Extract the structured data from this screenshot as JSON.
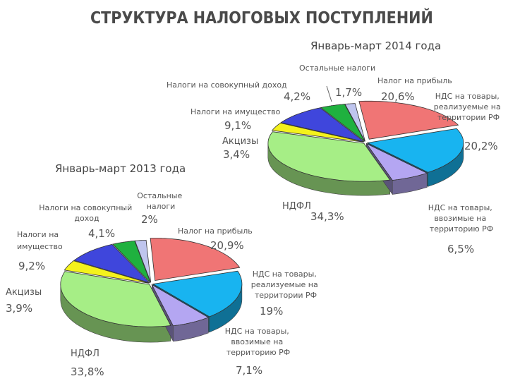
{
  "title": "СТРУКТУРА НАЛОГОВЫХ ПОСТУПЛЕНИЙ",
  "chart_data": [
    {
      "type": "pie",
      "title": "Январь-март 2014 года",
      "slices": [
        {
          "label": "Налог на прибыль",
          "value": 20.6,
          "value_label": "20,6%",
          "color": "#f07575"
        },
        {
          "label": "НДС на товары, реализуемые на территории РФ",
          "value": 20.2,
          "value_label": "20,2%",
          "color": "#18b4f0"
        },
        {
          "label": "НДС на товары, ввозимые на территорию РФ",
          "value": 6.5,
          "value_label": "6,5%",
          "color": "#b4a6f2"
        },
        {
          "label": "НДФЛ",
          "value": 34.3,
          "value_label": "34,3%",
          "color": "#a6ee86"
        },
        {
          "label": "Акцизы",
          "value": 3.4,
          "value_label": "3,4%",
          "color": "#f4f21c"
        },
        {
          "label": "Налоги на имущество",
          "value": 9.1,
          "value_label": "9,1%",
          "color": "#3f46dc"
        },
        {
          "label": "Налоги на совокупный доход",
          "value": 4.2,
          "value_label": "4,2%",
          "color": "#1fb13f"
        },
        {
          "label": "Остальные налоги",
          "value": 1.7,
          "value_label": "1,7%",
          "color": "#bfc5ee"
        }
      ]
    },
    {
      "type": "pie",
      "title": "Январь-март 2013 года",
      "slices": [
        {
          "label": "Налог на прибыль",
          "value": 20.9,
          "value_label": "20,9%",
          "color": "#f07575"
        },
        {
          "label": "НДС на товары, реализуемые на территории РФ",
          "value": 19,
          "value_label": "19%",
          "color": "#18b4f0"
        },
        {
          "label": "НДС на товары, ввозимые на территорию РФ",
          "value": 7.1,
          "value_label": "7,1%",
          "color": "#b4a6f2"
        },
        {
          "label": "НДФЛ",
          "value": 33.8,
          "value_label": "33,8%",
          "color": "#a6ee86"
        },
        {
          "label": "Акцизы",
          "value": 3.9,
          "value_label": "3,9%",
          "color": "#f4f21c"
        },
        {
          "label": "Налоги на имущество",
          "value": 9.2,
          "value_label": "9,2%",
          "color": "#3f46dc"
        },
        {
          "label": "Налоги на совокупный доход",
          "value": 4.1,
          "value_label": "4,1%",
          "color": "#1fb13f"
        },
        {
          "label": "Остальные налоги",
          "value": 2,
          "value_label": "2%",
          "color": "#bfc5ee"
        }
      ]
    }
  ]
}
